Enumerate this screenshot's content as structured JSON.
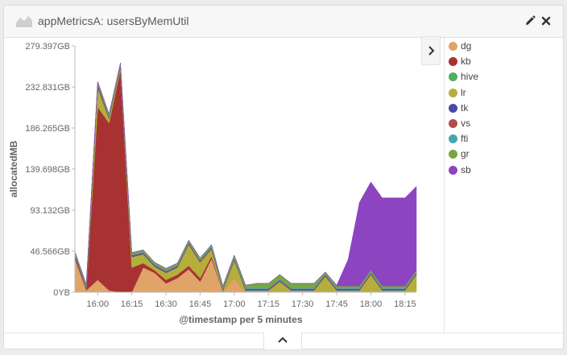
{
  "panel": {
    "title": "appMetricsA: usersByMemUtil"
  },
  "icons": {
    "chart_type": "area-chart-icon",
    "edit": "pencil-icon",
    "close": "close-icon",
    "legend_toggle": "chevron-right-icon",
    "expand": "chevron-up-icon"
  },
  "chart_data": {
    "type": "area",
    "stacked": true,
    "xlabel": "@timestamp per 5 minutes",
    "ylabel": "allocatedMB",
    "x_tick_labels": [
      "16:00",
      "16:15",
      "16:30",
      "16:45",
      "17:00",
      "17:15",
      "17:30",
      "17:45",
      "18:00",
      "18:15"
    ],
    "x_tick_minutes": [
      960,
      975,
      990,
      1005,
      1020,
      1035,
      1050,
      1065,
      1080,
      1095
    ],
    "y_tick_labels": [
      "0YB",
      "46.566GB",
      "93.132GB",
      "139.698GB",
      "186.265GB",
      "232.831GB",
      "279.397GB"
    ],
    "ylim": [
      0,
      279.397
    ],
    "y_unit": "GB",
    "grid": false,
    "legend_position": "right",
    "x_minutes": [
      950,
      955,
      960,
      965,
      970,
      975,
      980,
      985,
      990,
      995,
      1000,
      1005,
      1010,
      1015,
      1020,
      1025,
      1030,
      1035,
      1040,
      1045,
      1050,
      1055,
      1060,
      1065,
      1070,
      1075,
      1080,
      1085,
      1090,
      1095,
      1100
    ],
    "series": [
      {
        "name": "dg",
        "color": "#e0a468",
        "values": [
          38,
          2,
          14,
          2,
          0,
          0,
          28,
          22,
          10,
          16,
          26,
          12,
          38,
          0,
          16,
          0,
          0,
          0,
          0,
          0,
          0,
          0,
          0,
          0,
          0,
          0,
          0,
          0,
          0,
          0,
          0
        ]
      },
      {
        "name": "kb",
        "color": "#a83232",
        "values": [
          2,
          1,
          196,
          190,
          252,
          28,
          5,
          3,
          4,
          4,
          4,
          4,
          3,
          0,
          0,
          0,
          0,
          0,
          0,
          0,
          0,
          0,
          0,
          0,
          0,
          0,
          0,
          0,
          0,
          0,
          0
        ]
      },
      {
        "name": "hive",
        "color": "#4cb060",
        "values": [
          0,
          0,
          0,
          0,
          0,
          0,
          0,
          0,
          0,
          0,
          0,
          0,
          0,
          0,
          0,
          0,
          0,
          0,
          0,
          0,
          0,
          0,
          0,
          0,
          0,
          0,
          0,
          0,
          0,
          0,
          0
        ]
      },
      {
        "name": "lr",
        "color": "#b5ae3a",
        "values": [
          0,
          1,
          22,
          5,
          3,
          12,
          10,
          4,
          8,
          8,
          24,
          18,
          8,
          2,
          20,
          2,
          2,
          2,
          12,
          2,
          2,
          2,
          18,
          2,
          2,
          2,
          20,
          2,
          2,
          2,
          20
        ]
      },
      {
        "name": "tk",
        "color": "#4a4aa8",
        "values": [
          2,
          1,
          2,
          1,
          1,
          1,
          1,
          1,
          1,
          1,
          1,
          1,
          1,
          1,
          1,
          1,
          1,
          1,
          1,
          1,
          1,
          1,
          1,
          1,
          1,
          1,
          1,
          1,
          1,
          1,
          1
        ]
      },
      {
        "name": "vs",
        "color": "#b04c4c",
        "values": [
          1,
          1,
          2,
          1,
          1,
          1,
          1,
          1,
          1,
          1,
          1,
          1,
          1,
          1,
          1,
          1,
          1,
          1,
          1,
          1,
          1,
          1,
          1,
          1,
          1,
          1,
          1,
          1,
          1,
          1,
          1
        ]
      },
      {
        "name": "fti",
        "color": "#42a8b0",
        "values": [
          1,
          1,
          1,
          1,
          1,
          1,
          1,
          1,
          1,
          1,
          1,
          1,
          1,
          1,
          1,
          1,
          1,
          1,
          1,
          1,
          1,
          1,
          1,
          1,
          1,
          1,
          1,
          1,
          1,
          1,
          1
        ]
      },
      {
        "name": "gr",
        "color": "#74a840",
        "values": [
          2,
          2,
          2,
          2,
          2,
          2,
          2,
          2,
          2,
          2,
          2,
          2,
          2,
          2,
          3,
          3,
          5,
          5,
          5,
          5,
          5,
          5,
          2,
          2,
          2,
          2,
          2,
          2,
          2,
          2,
          2
        ]
      },
      {
        "name": "sb",
        "color": "#8c44c0",
        "values": [
          0,
          0,
          0,
          0,
          0,
          0,
          0,
          0,
          0,
          0,
          0,
          0,
          0,
          0,
          0,
          0,
          0,
          0,
          0,
          0,
          0,
          0,
          0,
          1,
          30,
          95,
          100,
          100,
          100,
          100,
          95
        ]
      }
    ]
  }
}
